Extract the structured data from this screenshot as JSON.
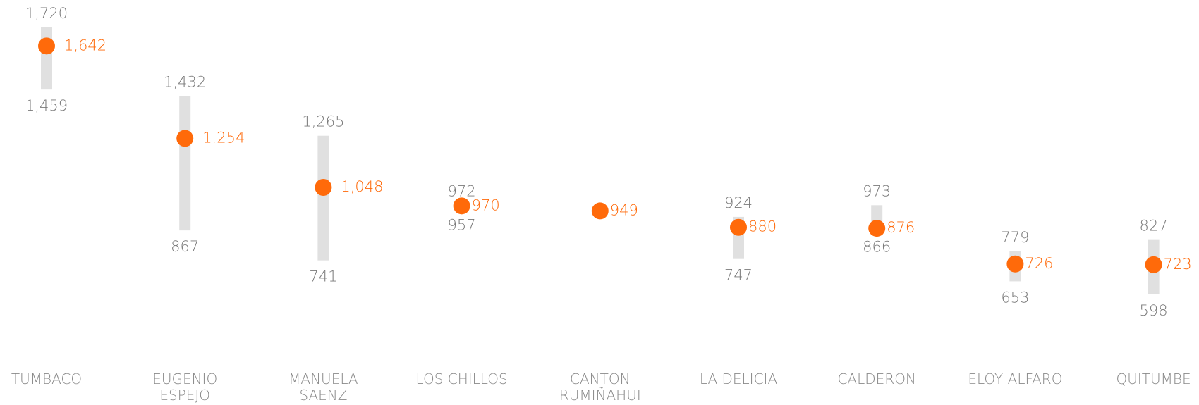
{
  "chart_data": {
    "type": "range-dot",
    "categories": [
      [
        "TUMBACO"
      ],
      [
        "EUGENIO",
        "ESPEJO"
      ],
      [
        "MANUELA",
        "SAENZ"
      ],
      [
        "LOS CHILLOS"
      ],
      [
        "CANTON",
        "RUMIÑAHUI"
      ],
      [
        "LA DELICIA"
      ],
      [
        "CALDERON"
      ],
      [
        "ELOY ALFARO"
      ],
      [
        "QUITUMBE"
      ]
    ],
    "values": [
      1642,
      1254,
      1048,
      970,
      949,
      880,
      876,
      726,
      723
    ],
    "value_labels": [
      "1,642",
      "1,254",
      "1,048",
      "970",
      "949",
      "880",
      "876",
      "726",
      "723"
    ],
    "high": [
      1720,
      1432,
      1265,
      972,
      null,
      924,
      973,
      779,
      827
    ],
    "high_labels": [
      "1,720",
      "1,432",
      "1,265",
      "972",
      null,
      "924",
      "973",
      "779",
      "827"
    ],
    "low": [
      1459,
      867,
      741,
      957,
      null,
      747,
      866,
      653,
      598
    ],
    "low_labels": [
      "1,459",
      "867",
      "741",
      "957",
      null,
      "747",
      "866",
      "653",
      "598"
    ],
    "color": "#ff6a0a",
    "range_color": "#e0e0e0"
  }
}
